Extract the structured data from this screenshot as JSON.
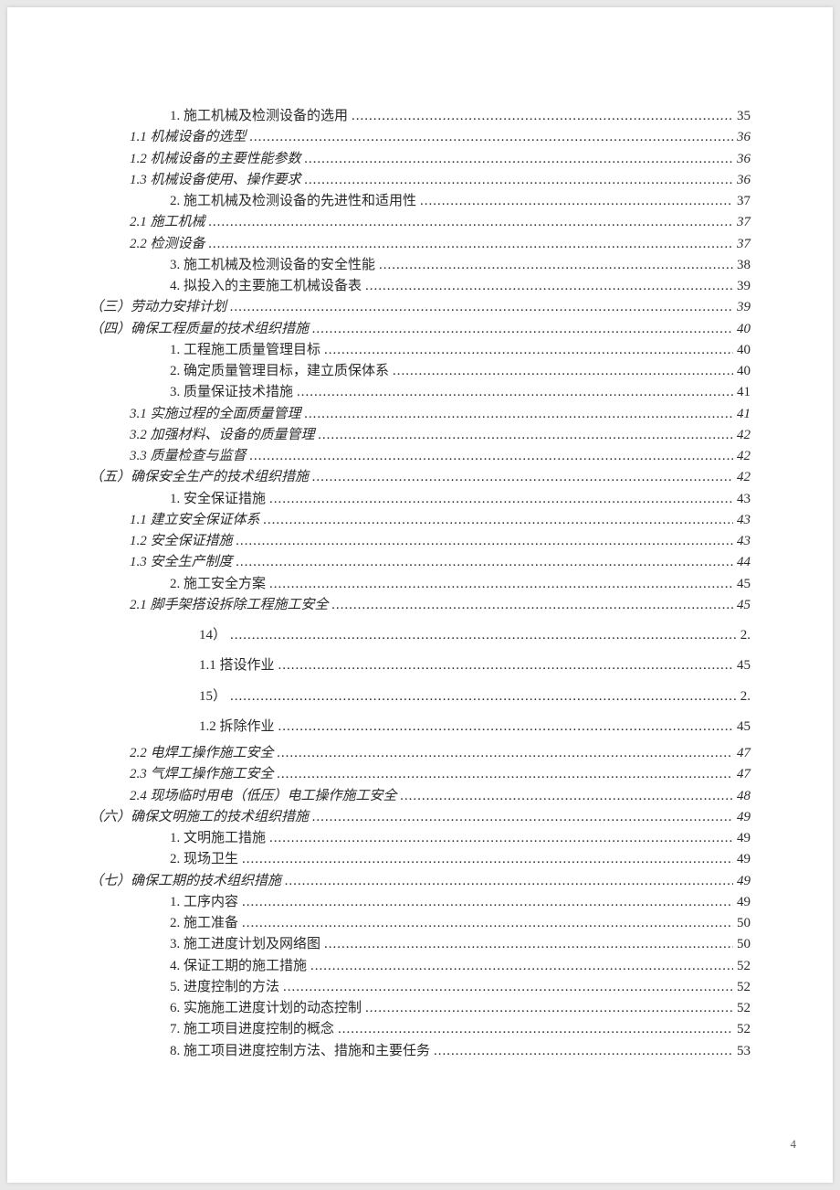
{
  "page_number": "4",
  "style": {
    "body_bg": "#e8e8e8",
    "page_bg": "#ffffff",
    "text_color": "#2a2a2a",
    "font_family": "SimSun",
    "base_fontsize": 15,
    "line_height": 1.55
  },
  "entries": [
    {
      "text": "1. 施工机械及检测设备的选用",
      "page": "35",
      "indent": 2,
      "italic": false
    },
    {
      "text": "1.1 机械设备的选型",
      "page": "36",
      "indent": 1,
      "italic": true
    },
    {
      "text": "1.2 机械设备的主要性能参数",
      "page": "36",
      "indent": 1,
      "italic": true
    },
    {
      "text": "1.3 机械设备使用、操作要求",
      "page": "36",
      "indent": 1,
      "italic": true
    },
    {
      "text": "2. 施工机械及检测设备的先进性和适用性",
      "page": "37",
      "indent": 2,
      "italic": false
    },
    {
      "text": "2.1 施工机械",
      "page": "37",
      "indent": 1,
      "italic": true
    },
    {
      "text": "2.2 检测设备",
      "page": "37",
      "indent": 1,
      "italic": true
    },
    {
      "text": "3. 施工机械及检测设备的安全性能",
      "page": "38",
      "indent": 2,
      "italic": false
    },
    {
      "text": "4. 拟投入的主要施工机械设备表",
      "page": "39",
      "indent": 2,
      "italic": false
    },
    {
      "text": "（三）劳动力安排计划",
      "page": "39",
      "indent": 0,
      "italic": true
    },
    {
      "text": "（四）确保工程质量的技术组织措施",
      "page": "40",
      "indent": 0,
      "italic": true
    },
    {
      "text": "1. 工程施工质量管理目标",
      "page": "40",
      "indent": 2,
      "italic": false
    },
    {
      "text": "2. 确定质量管理目标，建立质保体系",
      "page": "40",
      "indent": 2,
      "italic": false
    },
    {
      "text": "3. 质量保证技术措施",
      "page": "41",
      "indent": 2,
      "italic": false
    },
    {
      "text": "3.1 实施过程的全面质量管理",
      "page": "41",
      "indent": 1,
      "italic": true
    },
    {
      "text": "3.2 加强材料、设备的质量管理",
      "page": "42",
      "indent": 1,
      "italic": true
    },
    {
      "text": "3.3 质量检查与监督",
      "page": "42",
      "indent": 1,
      "italic": true
    },
    {
      "text": "（五）确保安全生产的技术组织措施",
      "page": "42",
      "indent": 0,
      "italic": true
    },
    {
      "text": "1. 安全保证措施",
      "page": "43",
      "indent": 2,
      "italic": false
    },
    {
      "text": "1.1 建立安全保证体系",
      "page": "43",
      "indent": 1,
      "italic": true
    },
    {
      "text": "1.2 安全保证措施",
      "page": "43",
      "indent": 1,
      "italic": true
    },
    {
      "text": "1.3 安全生产制度",
      "page": "44",
      "indent": 1,
      "italic": true
    },
    {
      "text": "2. 施工安全方案",
      "page": "45",
      "indent": 2,
      "italic": false
    },
    {
      "text": "2.1 脚手架搭设拆除工程施工安全",
      "page": "45",
      "indent": 1,
      "italic": true
    },
    {
      "text": "14）",
      "page": "2.",
      "indent": 3,
      "italic": false,
      "spaced": true
    },
    {
      "text": "1.1 搭设作业",
      "page": "45",
      "indent": 3,
      "italic": false,
      "spaced": true
    },
    {
      "text": "15）",
      "page": "2.",
      "indent": 3,
      "italic": false,
      "spaced": true
    },
    {
      "text": "1.2 拆除作业",
      "page": "45",
      "indent": 3,
      "italic": false,
      "spaced": true
    },
    {
      "text": "2.2 电焊工操作施工安全",
      "page": "47",
      "indent": 1,
      "italic": true
    },
    {
      "text": "2.3 气焊工操作施工安全",
      "page": "47",
      "indent": 1,
      "italic": true
    },
    {
      "text": "2.4 现场临时用电（低压）电工操作施工安全",
      "page": "48",
      "indent": 1,
      "italic": true
    },
    {
      "text": "（六）确保文明施工的技术组织措施",
      "page": "49",
      "indent": 0,
      "italic": true
    },
    {
      "text": "1. 文明施工措施",
      "page": "49",
      "indent": 2,
      "italic": false
    },
    {
      "text": "2. 现场卫生",
      "page": "49",
      "indent": 2,
      "italic": false
    },
    {
      "text": "（七）确保工期的技术组织措施",
      "page": "49",
      "indent": 0,
      "italic": true
    },
    {
      "text": "1. 工序内容",
      "page": "49",
      "indent": 2,
      "italic": false
    },
    {
      "text": "2. 施工准备",
      "page": "50",
      "indent": 2,
      "italic": false
    },
    {
      "text": "3. 施工进度计划及网络图",
      "page": "50",
      "indent": 2,
      "italic": false
    },
    {
      "text": "4. 保证工期的施工措施",
      "page": "52",
      "indent": 2,
      "italic": false
    },
    {
      "text": "5. 进度控制的方法",
      "page": "52",
      "indent": 2,
      "italic": false
    },
    {
      "text": "6. 实施施工进度计划的动态控制",
      "page": "52",
      "indent": 2,
      "italic": false
    },
    {
      "text": "7. 施工项目进度控制的概念",
      "page": "52",
      "indent": 2,
      "italic": false
    },
    {
      "text": "8. 施工项目进度控制方法、措施和主要任务",
      "page": "53",
      "indent": 2,
      "italic": false
    }
  ]
}
